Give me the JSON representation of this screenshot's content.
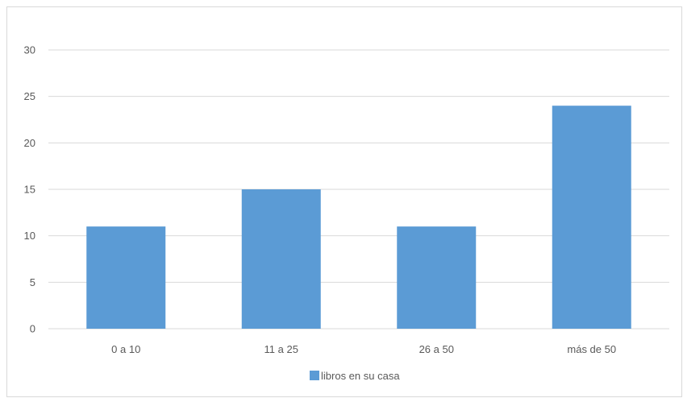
{
  "chart_data": {
    "type": "bar",
    "categories": [
      "0 a 10",
      "11 a 25",
      "26 a 50",
      "más de 50"
    ],
    "series": [
      {
        "name": "libros en su casa",
        "values": [
          11,
          15,
          11,
          24
        ],
        "color": "#5b9bd5"
      }
    ],
    "title": "",
    "xlabel": "",
    "ylabel": "",
    "ylim": [
      0,
      30
    ],
    "yticks": [
      0,
      5,
      10,
      15,
      20,
      25,
      30
    ],
    "grid": true,
    "legend_position": "bottom",
    "gridline_color": "#d9d9d9",
    "text_color": "#595959"
  }
}
